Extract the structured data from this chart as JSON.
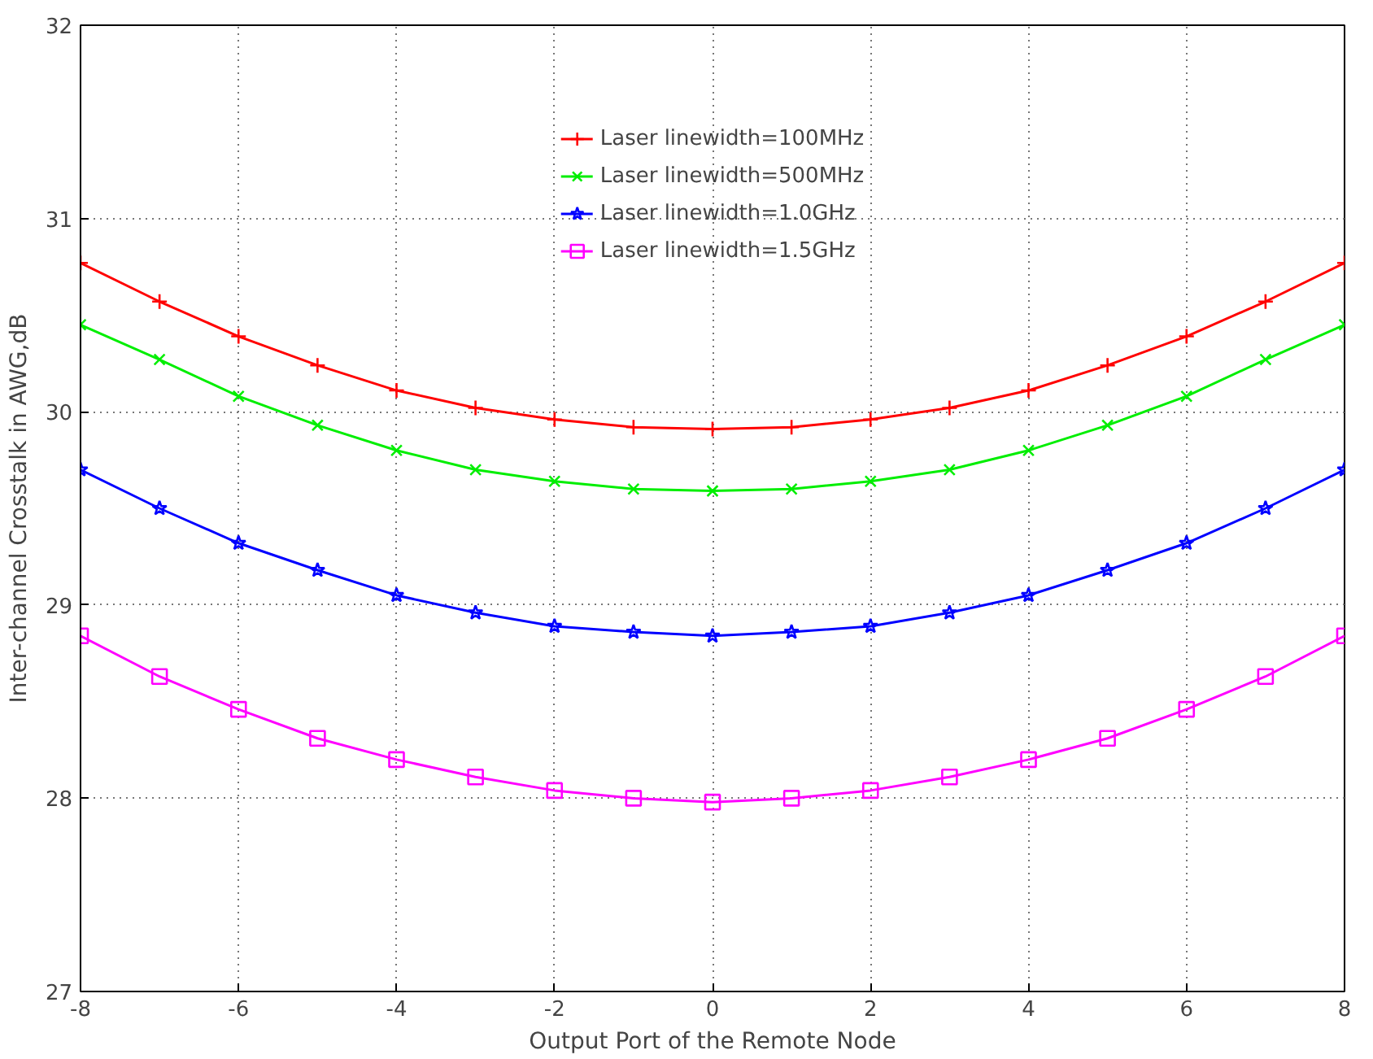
{
  "chart_data": {
    "type": "line",
    "xlabel": "Output Port of the Remote Node",
    "ylabel": "Inter-channel Crosstalk in AWG,dB",
    "x": [
      -8,
      -7,
      -6,
      -5,
      -4,
      -3,
      -2,
      -1,
      0,
      1,
      2,
      3,
      4,
      5,
      6,
      7,
      8
    ],
    "xlim": [
      -8,
      8
    ],
    "xticks": [
      -8,
      -6,
      -4,
      -2,
      0,
      2,
      4,
      6,
      8
    ],
    "ylim": [
      27,
      32
    ],
    "yticks": [
      27,
      28,
      29,
      30,
      31,
      32
    ],
    "grid": true,
    "legend": "top",
    "line_style": "solid",
    "series": [
      {
        "name": "Laser linewidth=100MHz",
        "color": "#ff0000",
        "marker": "cross",
        "values": [
          30.77,
          30.57,
          30.39,
          30.24,
          30.11,
          30.02,
          29.96,
          29.92,
          29.91,
          29.92,
          29.96,
          30.02,
          30.11,
          30.24,
          30.39,
          30.57,
          30.77
        ]
      },
      {
        "name": "Laser linewidth=500MHz",
        "color": "#00ee00",
        "marker": "x",
        "values": [
          30.45,
          30.27,
          30.08,
          29.93,
          29.8,
          29.7,
          29.64,
          29.6,
          29.59,
          29.6,
          29.64,
          29.7,
          29.8,
          29.93,
          30.08,
          30.27,
          30.45
        ]
      },
      {
        "name": "Laser linewidth=1.0GHz",
        "color": "#0000ff",
        "marker": "star",
        "values": [
          29.7,
          29.5,
          29.32,
          29.18,
          29.05,
          28.96,
          28.89,
          28.86,
          28.84,
          28.86,
          28.89,
          28.96,
          29.05,
          29.18,
          29.32,
          29.5,
          29.7
        ]
      },
      {
        "name": "Laser linewidth=1.5GHz",
        "color": "#ff00ff",
        "marker": "square",
        "values": [
          28.84,
          28.63,
          28.46,
          28.31,
          28.2,
          28.11,
          28.04,
          28.0,
          27.98,
          28.0,
          28.04,
          28.11,
          28.2,
          28.31,
          28.46,
          28.63,
          28.84
        ]
      }
    ]
  }
}
